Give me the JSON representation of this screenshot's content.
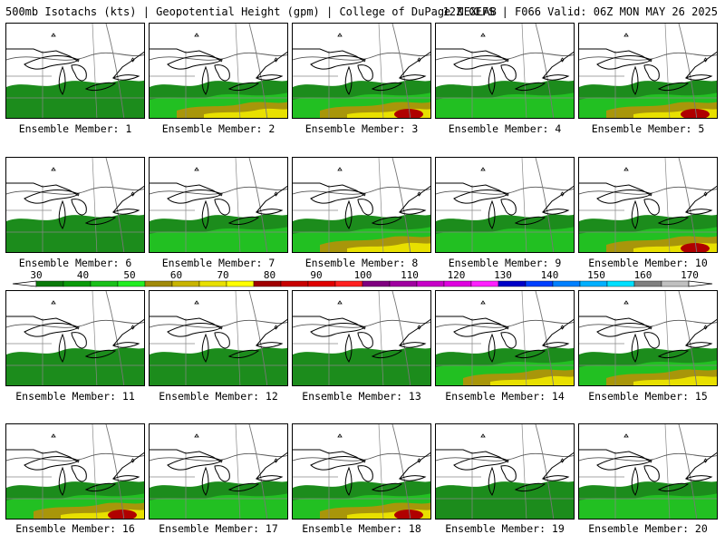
{
  "header": {
    "left_text": "500mb Isotachs (kts) | Geopotential Height (gpm) | College of DuPage NEXLAB",
    "right_text": "12Z GEFS | F066 Valid: 06Z MON MAY 26 2025"
  },
  "panels": [
    {
      "caption": "Ensemble Member: 1",
      "intensity": 1
    },
    {
      "caption": "Ensemble Member: 2",
      "intensity": 3
    },
    {
      "caption": "Ensemble Member: 3",
      "intensity": 4
    },
    {
      "caption": "Ensemble Member: 4",
      "intensity": 2
    },
    {
      "caption": "Ensemble Member: 5",
      "intensity": 4
    },
    {
      "caption": "Ensemble Member: 6",
      "intensity": 1
    },
    {
      "caption": "Ensemble Member: 7",
      "intensity": 2
    },
    {
      "caption": "Ensemble Member: 8",
      "intensity": 3
    },
    {
      "caption": "Ensemble Member: 9",
      "intensity": 2
    },
    {
      "caption": "Ensemble Member: 10",
      "intensity": 4
    },
    {
      "caption": "Ensemble Member: 11",
      "intensity": 1
    },
    {
      "caption": "Ensemble Member: 12",
      "intensity": 1
    },
    {
      "caption": "Ensemble Member: 13",
      "intensity": 1
    },
    {
      "caption": "Ensemble Member: 14",
      "intensity": 3
    },
    {
      "caption": "Ensemble Member: 15",
      "intensity": 3
    },
    {
      "caption": "Ensemble Member: 16",
      "intensity": 4
    },
    {
      "caption": "Ensemble Member: 17",
      "intensity": 2
    },
    {
      "caption": "Ensemble Member: 18",
      "intensity": 4
    },
    {
      "caption": "Ensemble Member: 19",
      "intensity": 1
    },
    {
      "caption": "Ensemble Member: 20",
      "intensity": 2
    }
  ],
  "color_scale": {
    "labels": [
      "30",
      "40",
      "50",
      "60",
      "70",
      "80",
      "90",
      "100",
      "110",
      "120",
      "130",
      "140",
      "150",
      "160",
      "170"
    ],
    "colors": [
      "#0a7a0a",
      "#0a9a0a",
      "#19c019",
      "#22ee22",
      "#a08a0a",
      "#c8b400",
      "#e8e000",
      "#ffff00",
      "#a00000",
      "#c80000",
      "#e00000",
      "#ff2020",
      "#800080",
      "#a000a0",
      "#c800c8",
      "#e000e0",
      "#ff20ff",
      "#0000c8",
      "#0040ff",
      "#0080ff",
      "#00b0ff",
      "#00e0ff",
      "#808080",
      "#c0c0c0"
    ]
  }
}
